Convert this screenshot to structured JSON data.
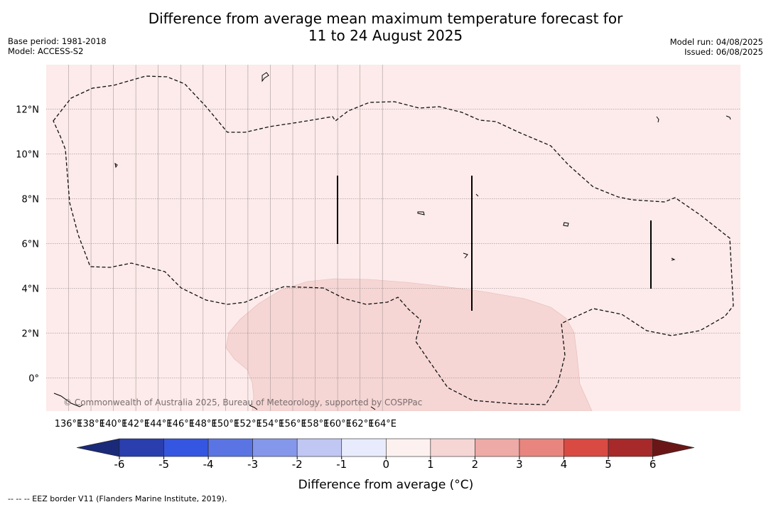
{
  "header": {
    "title_line1": "Difference from average mean maximum temperature forecast for",
    "title_line2": "11 to 24 August 2025",
    "base_period": "Base period: 1981-2018",
    "model": "Model: ACCESS-S2",
    "model_run": "Model run: 04/08/2025",
    "issued": "Issued: 06/08/2025"
  },
  "map": {
    "lon_labels": [
      "136°E",
      "138°E",
      "140°E",
      "142°E",
      "144°E",
      "146°E",
      "148°E",
      "150°E",
      "152°E",
      "154°E",
      "156°E",
      "158°E",
      "160°E",
      "162°E",
      "164°E"
    ],
    "lat_labels": [
      "12°N",
      "10°N",
      "8°N",
      "6°N",
      "4°N",
      "2°N",
      "0°"
    ],
    "background_color": "#fcebea",
    "anomaly_2_3_color": "#f5d6d4",
    "copyright": "© Commonwealth of Australia 2025, Bureau of Meteorology, supported by COSPPac"
  },
  "colorbar": {
    "title": "Difference from average (°C)",
    "ticks": [
      "-6",
      "-5",
      "-4",
      "-3",
      "-2",
      "-1",
      "0",
      "1",
      "2",
      "3",
      "4",
      "5",
      "6"
    ],
    "colors": [
      "#1a2a78",
      "#2a3fad",
      "#3556e0",
      "#5a75e3",
      "#8597ea",
      "#c0c7f3",
      "#e8ebfb",
      "#fdf1ef",
      "#f5d6d4",
      "#eeaaa6",
      "#e7857e",
      "#d94a42",
      "#a8292a",
      "#6b1616"
    ]
  },
  "footnote": "--  --  -- EEZ border V11 (Flanders Marine Institute, 2019)."
}
